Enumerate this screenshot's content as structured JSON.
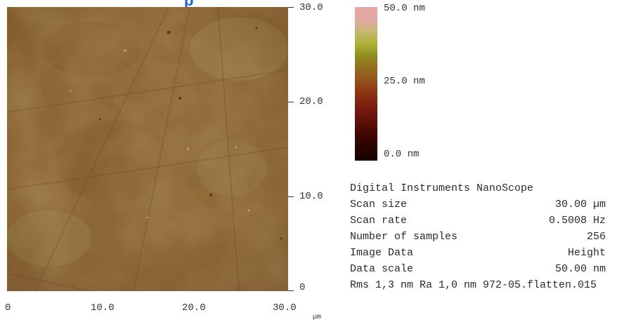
{
  "title_fragment": "p",
  "image": {
    "y_axis_ticks": [
      "30.0",
      "20.0",
      "10.0",
      "0"
    ],
    "x_axis_ticks": [
      "0",
      "10.0",
      "20.0",
      "30.0"
    ],
    "x_axis_unit": "µm",
    "base_color": "#8a6433"
  },
  "colorbar": {
    "labels": [
      "50.0 nm",
      "25.0 nm",
      "0.0 nm"
    ]
  },
  "info": {
    "header": "Digital Instruments NanoScope",
    "rows": [
      {
        "label": "Scan size",
        "value": "30.00 µm"
      },
      {
        "label": "Scan rate",
        "value": "0.5008 Hz"
      },
      {
        "label": "Number of samples",
        "value": "256"
      },
      {
        "label": "Image Data",
        "value": "Height"
      },
      {
        "label": "Data scale",
        "value": "50.00 nm"
      }
    ],
    "footer": "Rms 1,3 nm Ra 1,0 nm 972-05.flatten.015"
  }
}
